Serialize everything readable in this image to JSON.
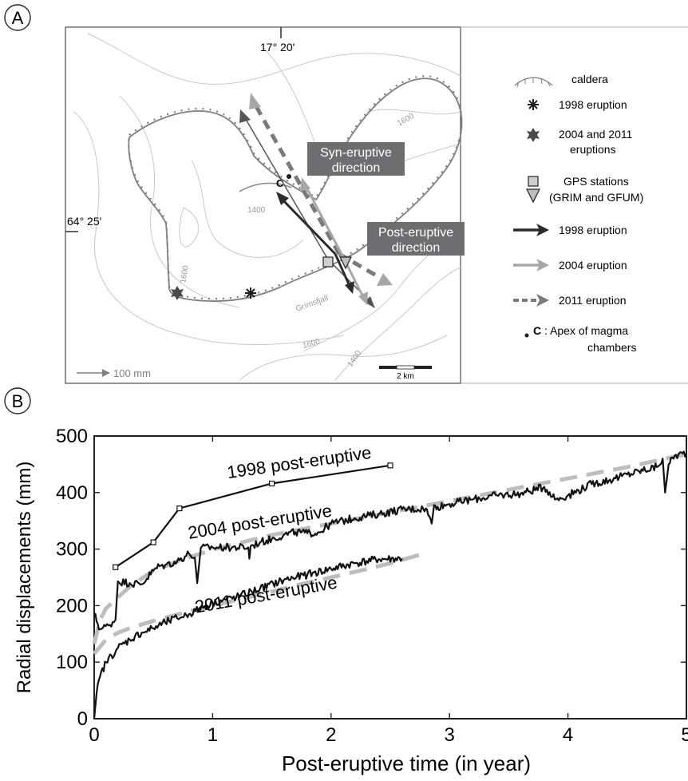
{
  "panel_a": {
    "letter": "A",
    "lon_label": "17° 20'",
    "lat_label": "64° 25'",
    "place_label": "Grímsfjall",
    "contour_labels": [
      "1400",
      "1600",
      "1600",
      "1600",
      "1400"
    ],
    "annotations": {
      "apex": "C",
      "syn_line1": "Syn-eruptive",
      "syn_line2": "direction",
      "post_line1": "Post-eruptive",
      "post_line2": "direction"
    },
    "scale_arrow_label": "100 mm",
    "scale_bar_label": "2 km",
    "legend": {
      "caldera": "caldera",
      "eruption_1998": "1998 eruption",
      "eruption_2004_2011_line1": "2004 and 2011",
      "eruption_2004_2011_line2": "eruptions",
      "gps_line1": "GPS stations",
      "gps_line2": "(GRIM and GFUM)",
      "arrow_1998": "1998 eruption",
      "arrow_2004": "2004 eruption",
      "arrow_2011": "2011 eruption",
      "apex_key": "C",
      "apex_line1": " : Apex of magma",
      "apex_line2": "chambers"
    },
    "colors": {
      "arrow_1998": "#2b2b2b",
      "arrow_2004": "#a7a7a7",
      "arrow_2011": "#7a7a7a",
      "caldera": "#808080",
      "label_box": "#6d6e71"
    }
  },
  "panel_b": {
    "letter": "B"
  },
  "chart_data": {
    "type": "line",
    "xlabel": "Post-eruptive time (in year)",
    "ylabel": "Radial displacements (mm)",
    "xlim": [
      0,
      5
    ],
    "ylim": [
      0,
      500
    ],
    "xticks": [
      0,
      1,
      2,
      3,
      4,
      5
    ],
    "yticks": [
      0,
      100,
      200,
      300,
      400,
      500
    ],
    "grid": false,
    "series": [
      {
        "name": "1998 post-eruptive",
        "style": "line-markers",
        "x": [
          0.18,
          0.5,
          0.72,
          1.5,
          2.5
        ],
        "y": [
          268,
          312,
          372,
          416,
          448
        ]
      },
      {
        "name": "2004 post-eruptive",
        "style": "noisy",
        "x": [
          0,
          0.05,
          0.12,
          0.18,
          0.2,
          0.3,
          0.4,
          0.5,
          0.55,
          0.6,
          0.7,
          0.8,
          0.85,
          0.87,
          0.9,
          1.0,
          1.1,
          1.3,
          1.31,
          1.32,
          1.4,
          1.5,
          1.6,
          1.7,
          1.8,
          1.9,
          2.0,
          2.2,
          2.4,
          2.6,
          2.8,
          2.85,
          2.87,
          2.9,
          3.0,
          3.2,
          3.4,
          3.6,
          3.8,
          3.9,
          4.0,
          4.2,
          4.4,
          4.6,
          4.75,
          4.8,
          4.82,
          4.85,
          4.9,
          5.0
        ],
        "y": [
          185,
          158,
          165,
          175,
          243,
          240,
          238,
          262,
          270,
          272,
          278,
          292,
          285,
          240,
          302,
          303,
          303,
          303,
          283,
          305,
          312,
          318,
          325,
          330,
          328,
          330,
          345,
          355,
          362,
          370,
          372,
          345,
          378,
          375,
          380,
          388,
          395,
          398,
          410,
          388,
          395,
          415,
          425,
          438,
          445,
          460,
          400,
          450,
          465,
          470
        ]
      },
      {
        "name": "2011 post-eruptive",
        "style": "noisy",
        "x": [
          0,
          0.02,
          0.05,
          0.1,
          0.2,
          0.3,
          0.4,
          0.5,
          0.6,
          0.7,
          0.8,
          0.9,
          1.0,
          1.2,
          1.4,
          1.6,
          1.8,
          2.0,
          2.2,
          2.4,
          2.6
        ],
        "y": [
          0,
          45,
          75,
          100,
          125,
          140,
          152,
          160,
          170,
          178,
          185,
          195,
          205,
          215,
          230,
          245,
          255,
          265,
          275,
          282,
          283
        ]
      },
      {
        "name": "",
        "style": "fit-dashed",
        "x": [
          0,
          0.05,
          0.1,
          0.2,
          0.3,
          0.5,
          0.75,
          1.0,
          1.5,
          2.0,
          2.5,
          3.0,
          3.5,
          4.0,
          4.5,
          5.0
        ],
        "y": [
          132,
          175,
          195,
          215,
          233,
          262,
          282,
          299,
          325,
          345,
          365,
          385,
          405,
          425,
          445,
          468
        ]
      },
      {
        "name": "",
        "style": "fit-dashed",
        "x": [
          0,
          0.1,
          0.2,
          0.3,
          0.5,
          0.75,
          1.0,
          1.25,
          1.5,
          1.75,
          2.0,
          2.25,
          2.5,
          2.75
        ],
        "y": [
          115,
          140,
          152,
          160,
          173,
          187,
          200,
          212,
          225,
          238,
          250,
          262,
          275,
          290
        ]
      }
    ]
  }
}
